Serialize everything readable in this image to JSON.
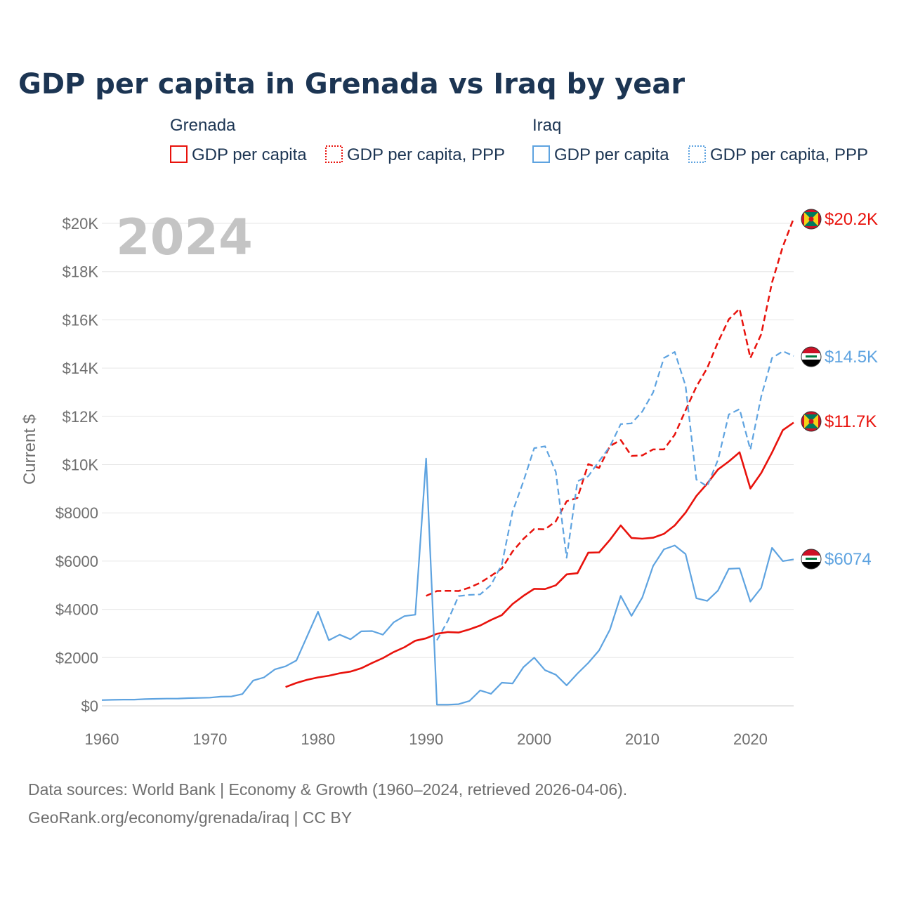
{
  "chart_data": {
    "type": "line",
    "title": "GDP per capita in Grenada vs Iraq by year",
    "year_label": "2024",
    "ylabel": "Current $",
    "xlabel": "",
    "xlim": [
      1960,
      2024
    ],
    "ylim": [
      0,
      20000
    ],
    "x_ticks": [
      "1960",
      "1970",
      "1980",
      "1990",
      "2000",
      "2010",
      "2020"
    ],
    "y_ticks": [
      "$0",
      "$2000",
      "$4000",
      "$6000",
      "$8000",
      "$10K",
      "$12K",
      "$14K",
      "$16K",
      "$18K",
      "$20K"
    ],
    "legend": {
      "groups": [
        {
          "name": "Grenada",
          "items": [
            "GDP per capita",
            "GDP per capita, PPP"
          ]
        },
        {
          "name": "Iraq",
          "items": [
            "GDP per capita",
            "GDP per capita, PPP"
          ]
        }
      ]
    },
    "colors": {
      "grenada": "#e8120c",
      "iraq": "#5ea3e0"
    },
    "series": [
      {
        "name": "Grenada GDP per capita",
        "country": "Grenada",
        "style": "solid",
        "end_label": "$11.7K",
        "x": [
          1977,
          1978,
          1979,
          1980,
          1981,
          1982,
          1983,
          1984,
          1985,
          1986,
          1987,
          1988,
          1989,
          1990,
          1991,
          1992,
          1993,
          1994,
          1995,
          1996,
          1997,
          1998,
          1999,
          2000,
          2001,
          2002,
          2003,
          2004,
          2005,
          2006,
          2007,
          2008,
          2009,
          2010,
          2011,
          2012,
          2013,
          2014,
          2015,
          2016,
          2017,
          2018,
          2019,
          2020,
          2021,
          2022,
          2023,
          2024
        ],
        "values": [
          780,
          950,
          1080,
          1180,
          1250,
          1350,
          1420,
          1560,
          1780,
          1980,
          2230,
          2430,
          2700,
          2800,
          2990,
          3060,
          3040,
          3170,
          3330,
          3560,
          3760,
          4220,
          4560,
          4850,
          4840,
          5000,
          5450,
          5500,
          6350,
          6360,
          6880,
          7480,
          6960,
          6930,
          6970,
          7130,
          7480,
          8010,
          8700,
          9210,
          9800,
          10130,
          10510,
          9010,
          9650,
          10500,
          11430,
          11740
        ]
      },
      {
        "name": "Grenada GDP per capita, PPP",
        "country": "Grenada",
        "style": "dashed",
        "end_label": "$20.2K",
        "x": [
          1990,
          1991,
          1992,
          1993,
          1994,
          1995,
          1996,
          1997,
          1998,
          1999,
          2000,
          2001,
          2002,
          2003,
          2004,
          2005,
          2006,
          2007,
          2008,
          2009,
          2010,
          2011,
          2012,
          2013,
          2014,
          2015,
          2016,
          2017,
          2018,
          2019,
          2020,
          2021,
          2022,
          2023,
          2024
        ],
        "values": [
          4560,
          4760,
          4770,
          4760,
          4900,
          5100,
          5390,
          5690,
          6400,
          6920,
          7330,
          7320,
          7650,
          8480,
          8620,
          10020,
          9860,
          10770,
          11020,
          10360,
          10380,
          10630,
          10630,
          11240,
          12250,
          13230,
          14000,
          15080,
          16020,
          16460,
          14420,
          15400,
          17550,
          19040,
          20200
        ]
      },
      {
        "name": "Iraq GDP per capita",
        "country": "Iraq",
        "style": "solid",
        "end_label": "$6074",
        "x": [
          1960,
          1961,
          1962,
          1963,
          1964,
          1965,
          1966,
          1967,
          1968,
          1969,
          1970,
          1971,
          1972,
          1973,
          1974,
          1975,
          1976,
          1977,
          1978,
          1979,
          1980,
          1981,
          1982,
          1983,
          1984,
          1985,
          1986,
          1987,
          1988,
          1989,
          1990,
          1991,
          1992,
          1993,
          1994,
          1995,
          1996,
          1997,
          1998,
          1999,
          2000,
          2001,
          2002,
          2003,
          2004,
          2005,
          2006,
          2007,
          2008,
          2009,
          2010,
          2011,
          2012,
          2013,
          2014,
          2015,
          2016,
          2017,
          2018,
          2019,
          2020,
          2021,
          2022,
          2023,
          2024
        ],
        "values": [
          240,
          250,
          260,
          260,
          280,
          290,
          300,
          300,
          320,
          330,
          340,
          380,
          390,
          490,
          1050,
          1180,
          1510,
          1640,
          1880,
          2890,
          3900,
          2720,
          2950,
          2760,
          3090,
          3100,
          2950,
          3460,
          3720,
          3780,
          10250,
          50,
          50,
          70,
          200,
          640,
          500,
          960,
          930,
          1600,
          2000,
          1480,
          1290,
          850,
          1340,
          1780,
          2300,
          3160,
          4560,
          3730,
          4490,
          5800,
          6490,
          6650,
          6290,
          4460,
          4350,
          4780,
          5680,
          5700,
          4320,
          4890,
          6550,
          6000,
          6074
        ]
      },
      {
        "name": "Iraq GDP per capita, PPP",
        "country": "Iraq",
        "style": "dashed",
        "end_label": "$14.5K",
        "x": [
          1991,
          1992,
          1993,
          1994,
          1995,
          1996,
          1997,
          1998,
          1999,
          2000,
          2001,
          2002,
          2003,
          2004,
          2005,
          2006,
          2007,
          2008,
          2009,
          2010,
          2011,
          2012,
          2013,
          2014,
          2015,
          2016,
          2017,
          2018,
          2019,
          2020,
          2021,
          2022,
          2023,
          2024
        ],
        "values": [
          2720,
          3520,
          4550,
          4600,
          4620,
          5010,
          5860,
          8050,
          9300,
          10680,
          10760,
          9690,
          6140,
          9310,
          9520,
          10140,
          10750,
          11680,
          11710,
          12200,
          12990,
          14420,
          14670,
          13270,
          9380,
          9100,
          10200,
          12080,
          12300,
          10620,
          12820,
          14420,
          14700,
          14500
        ]
      }
    ]
  },
  "source": {
    "line1": "Data sources: World Bank | Economy & Growth (1960–2024, retrieved 2026-04-06).",
    "line2": "GeoRank.org/economy/grenada/iraq | CC BY"
  }
}
